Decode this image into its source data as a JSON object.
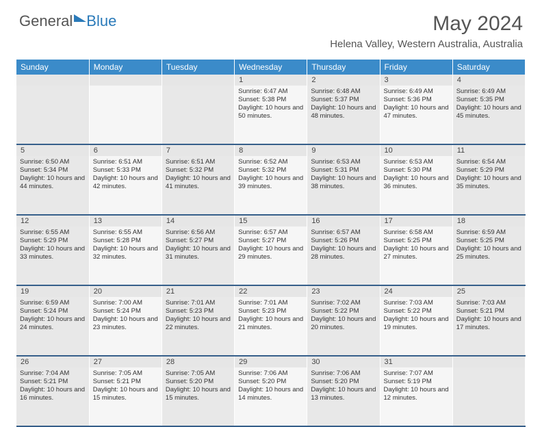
{
  "logo": {
    "text1": "General",
    "text2": "Blue"
  },
  "title": "May 2024",
  "location": "Helena Valley, Western Australia, Australia",
  "colors": {
    "header_bg": "#3b8bc9",
    "daynum_bg": "#e6e6e6",
    "alt_a": "#e8e8e8",
    "alt_b": "#f6f6f6",
    "separator": "#365f8a",
    "logo_blue": "#2a7ab9",
    "text": "#555"
  },
  "weekdays": [
    "Sunday",
    "Monday",
    "Tuesday",
    "Wednesday",
    "Thursday",
    "Friday",
    "Saturday"
  ],
  "first_weekday_index": 3,
  "days": {
    "1": {
      "sunrise": "6:47 AM",
      "sunset": "5:38 PM",
      "daylight": "10 hours and 50 minutes."
    },
    "2": {
      "sunrise": "6:48 AM",
      "sunset": "5:37 PM",
      "daylight": "10 hours and 48 minutes."
    },
    "3": {
      "sunrise": "6:49 AM",
      "sunset": "5:36 PM",
      "daylight": "10 hours and 47 minutes."
    },
    "4": {
      "sunrise": "6:49 AM",
      "sunset": "5:35 PM",
      "daylight": "10 hours and 45 minutes."
    },
    "5": {
      "sunrise": "6:50 AM",
      "sunset": "5:34 PM",
      "daylight": "10 hours and 44 minutes."
    },
    "6": {
      "sunrise": "6:51 AM",
      "sunset": "5:33 PM",
      "daylight": "10 hours and 42 minutes."
    },
    "7": {
      "sunrise": "6:51 AM",
      "sunset": "5:32 PM",
      "daylight": "10 hours and 41 minutes."
    },
    "8": {
      "sunrise": "6:52 AM",
      "sunset": "5:32 PM",
      "daylight": "10 hours and 39 minutes."
    },
    "9": {
      "sunrise": "6:53 AM",
      "sunset": "5:31 PM",
      "daylight": "10 hours and 38 minutes."
    },
    "10": {
      "sunrise": "6:53 AM",
      "sunset": "5:30 PM",
      "daylight": "10 hours and 36 minutes."
    },
    "11": {
      "sunrise": "6:54 AM",
      "sunset": "5:29 PM",
      "daylight": "10 hours and 35 minutes."
    },
    "12": {
      "sunrise": "6:55 AM",
      "sunset": "5:29 PM",
      "daylight": "10 hours and 33 minutes."
    },
    "13": {
      "sunrise": "6:55 AM",
      "sunset": "5:28 PM",
      "daylight": "10 hours and 32 minutes."
    },
    "14": {
      "sunrise": "6:56 AM",
      "sunset": "5:27 PM",
      "daylight": "10 hours and 31 minutes."
    },
    "15": {
      "sunrise": "6:57 AM",
      "sunset": "5:27 PM",
      "daylight": "10 hours and 29 minutes."
    },
    "16": {
      "sunrise": "6:57 AM",
      "sunset": "5:26 PM",
      "daylight": "10 hours and 28 minutes."
    },
    "17": {
      "sunrise": "6:58 AM",
      "sunset": "5:25 PM",
      "daylight": "10 hours and 27 minutes."
    },
    "18": {
      "sunrise": "6:59 AM",
      "sunset": "5:25 PM",
      "daylight": "10 hours and 25 minutes."
    },
    "19": {
      "sunrise": "6:59 AM",
      "sunset": "5:24 PM",
      "daylight": "10 hours and 24 minutes."
    },
    "20": {
      "sunrise": "7:00 AM",
      "sunset": "5:24 PM",
      "daylight": "10 hours and 23 minutes."
    },
    "21": {
      "sunrise": "7:01 AM",
      "sunset": "5:23 PM",
      "daylight": "10 hours and 22 minutes."
    },
    "22": {
      "sunrise": "7:01 AM",
      "sunset": "5:23 PM",
      "daylight": "10 hours and 21 minutes."
    },
    "23": {
      "sunrise": "7:02 AM",
      "sunset": "5:22 PM",
      "daylight": "10 hours and 20 minutes."
    },
    "24": {
      "sunrise": "7:03 AM",
      "sunset": "5:22 PM",
      "daylight": "10 hours and 19 minutes."
    },
    "25": {
      "sunrise": "7:03 AM",
      "sunset": "5:21 PM",
      "daylight": "10 hours and 17 minutes."
    },
    "26": {
      "sunrise": "7:04 AM",
      "sunset": "5:21 PM",
      "daylight": "10 hours and 16 minutes."
    },
    "27": {
      "sunrise": "7:05 AM",
      "sunset": "5:21 PM",
      "daylight": "10 hours and 15 minutes."
    },
    "28": {
      "sunrise": "7:05 AM",
      "sunset": "5:20 PM",
      "daylight": "10 hours and 15 minutes."
    },
    "29": {
      "sunrise": "7:06 AM",
      "sunset": "5:20 PM",
      "daylight": "10 hours and 14 minutes."
    },
    "30": {
      "sunrise": "7:06 AM",
      "sunset": "5:20 PM",
      "daylight": "10 hours and 13 minutes."
    },
    "31": {
      "sunrise": "7:07 AM",
      "sunset": "5:19 PM",
      "daylight": "10 hours and 12 minutes."
    }
  },
  "labels": {
    "sunrise": "Sunrise:",
    "sunset": "Sunset:",
    "daylight": "Daylight:"
  }
}
